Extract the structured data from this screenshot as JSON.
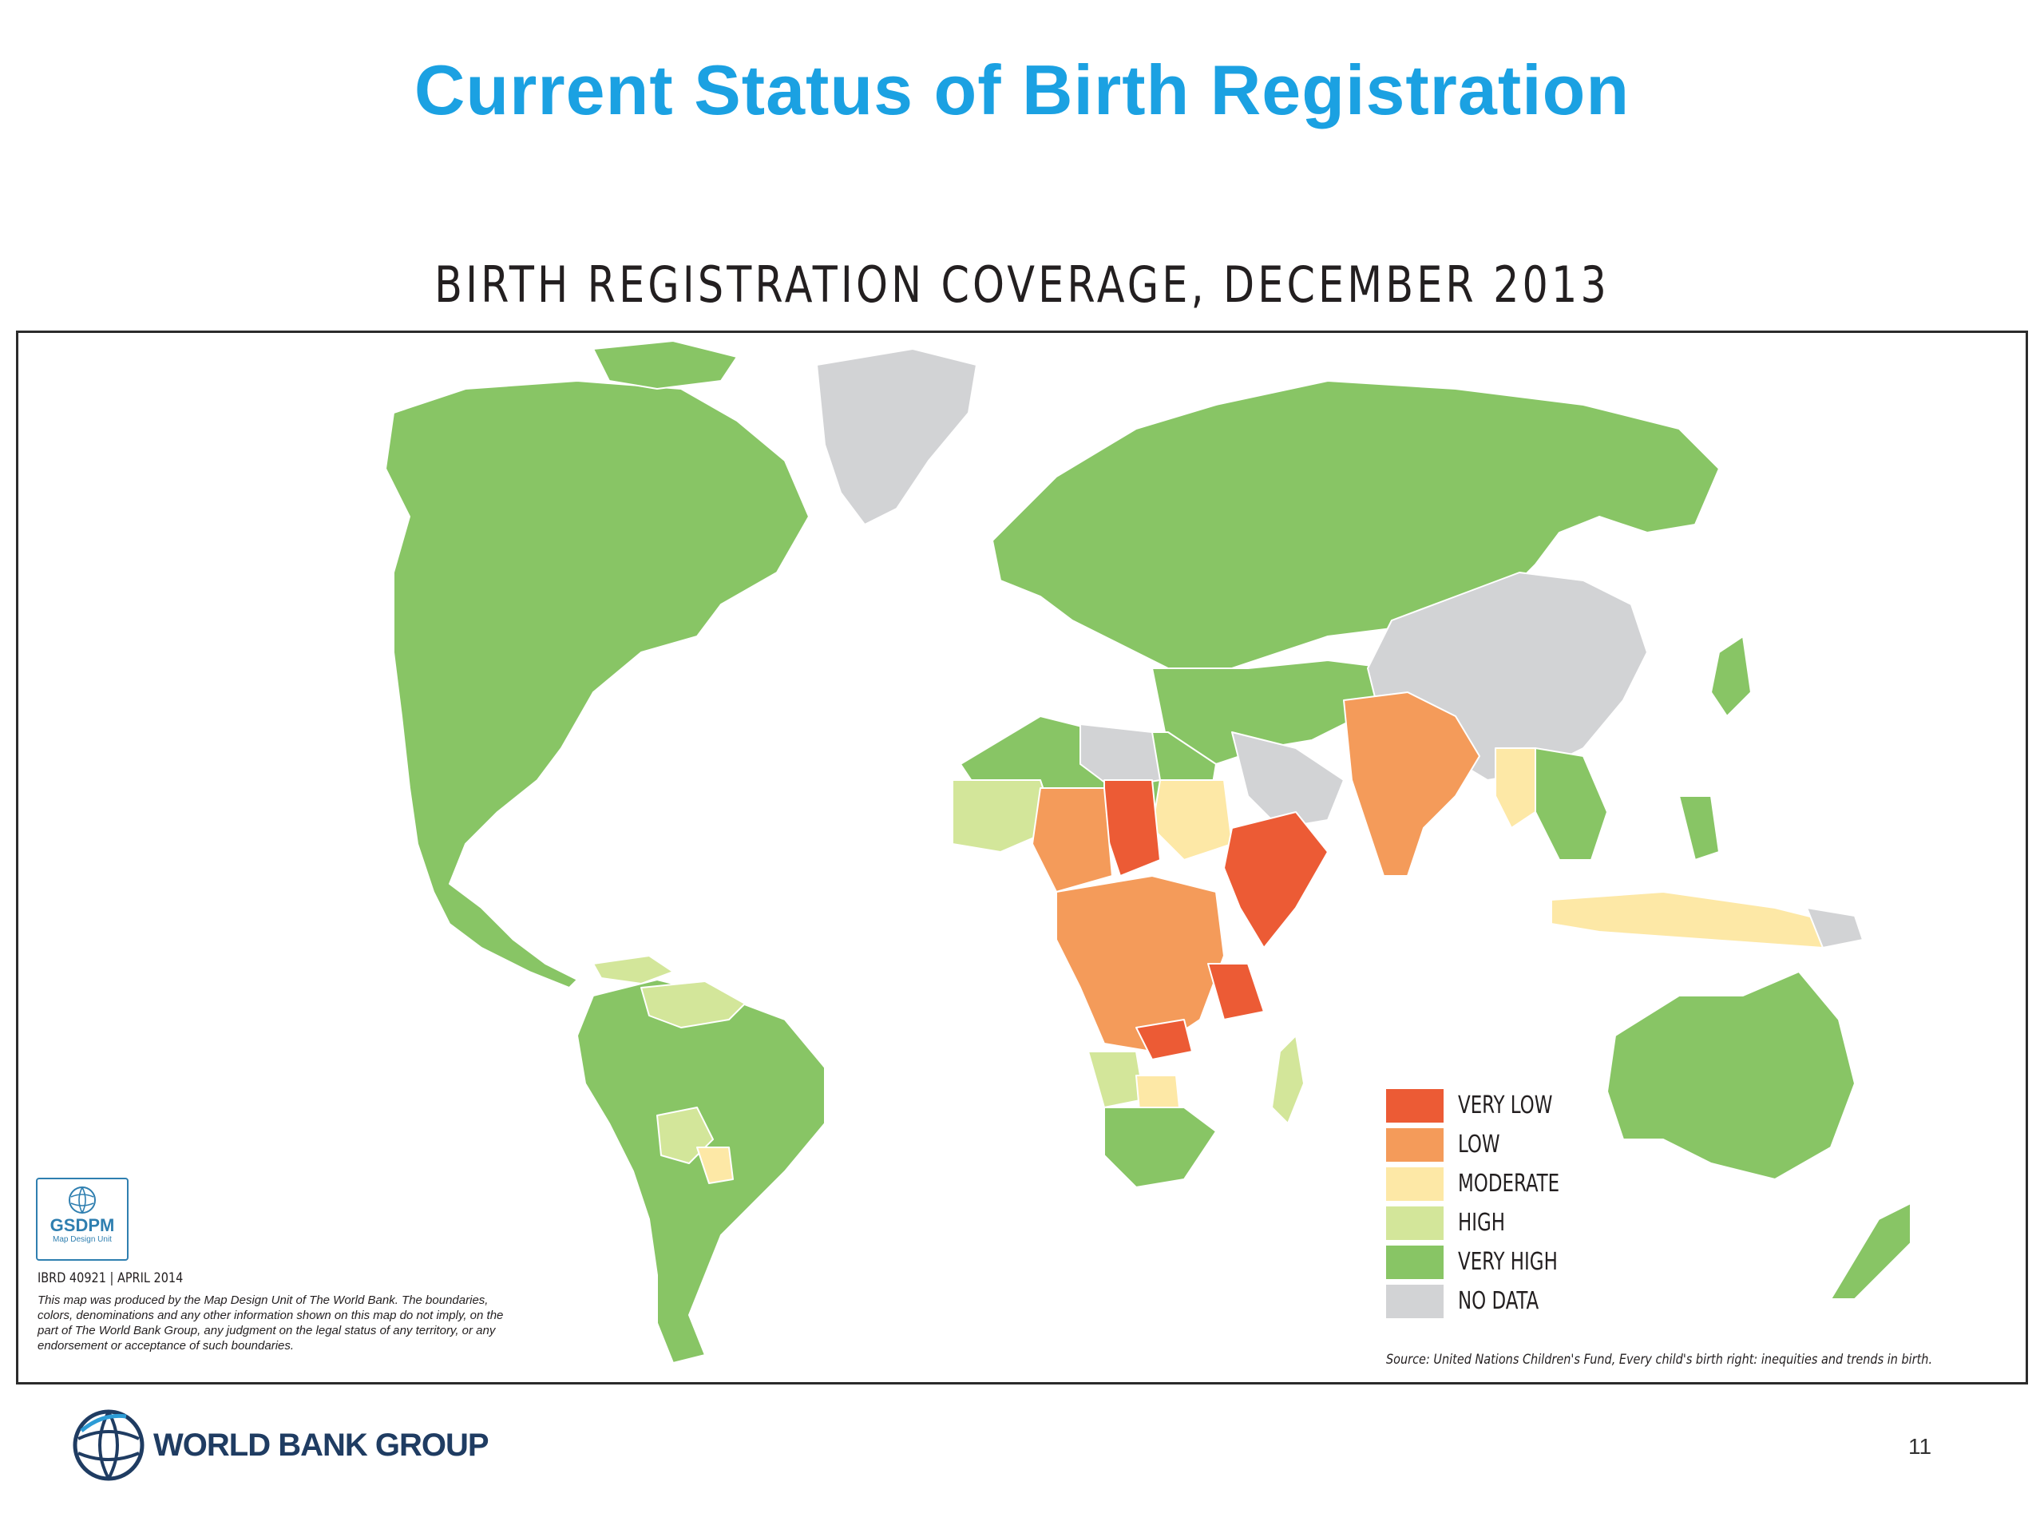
{
  "slide": {
    "title": "Current Status of Birth Registration",
    "page_number": "11"
  },
  "map": {
    "title": "BIRTH REGISTRATION COVERAGE, DECEMBER 2013",
    "legend": [
      {
        "label": "VERY LOW",
        "color": "#ec5b35"
      },
      {
        "label": "LOW",
        "color": "#f49b5a"
      },
      {
        "label": "MODERATE",
        "color": "#fde8a6"
      },
      {
        "label": "HIGH",
        "color": "#d3e69a"
      },
      {
        "label": "VERY HIGH",
        "color": "#88c565"
      },
      {
        "label": "NO DATA",
        "color": "#d2d3d5"
      }
    ],
    "source": "Source: United Nations Children's Fund, Every child's birth right: inequities and trends in birth.",
    "ibrd": "IBRD 40921  |  APRIL 2014",
    "disclaimer": "This map was produced by the Map Design Unit of The World Bank. The boundaries, colors, denominations and any other information shown on this map do not imply, on the part of The World Bank Group, any judgment on the legal status of any territory, or any endorsement or acceptance of such boundaries.",
    "badge": {
      "name": "GSDPM",
      "subtitle": "Map Design Unit"
    }
  },
  "footer": {
    "logo_text": "WORLD BANK GROUP"
  }
}
